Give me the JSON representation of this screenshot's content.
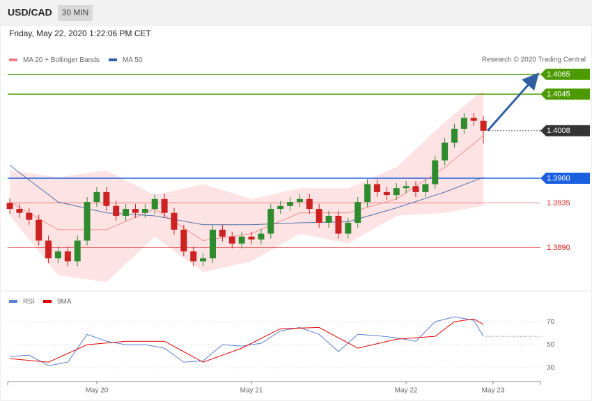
{
  "header": {
    "symbol": "USD/CAD",
    "interval": "30 MIN",
    "timestamp": "Friday, May 22, 2020 1:22:06 PM CET"
  },
  "chart_data": [
    {
      "type": "candlestick",
      "credit": "Research © 2020 Trading Central",
      "xlim": [
        -0.22,
        54.9
      ],
      "ylim": [
        1.3846,
        1.4112
      ],
      "up_color": "#2e8b2e",
      "down_color": "#cc2222",
      "open": [
        1.3935,
        1.3929,
        1.3925,
        1.3918,
        1.3897,
        1.3879,
        1.3886,
        1.3876,
        1.3897,
        1.3936,
        1.3946,
        1.3932,
        1.3922,
        1.3929,
        1.3925,
        1.3929,
        1.3939,
        1.3925,
        1.3908,
        1.3886,
        1.3876,
        1.3879,
        1.3908,
        1.3901,
        1.3894,
        1.3901,
        1.3898,
        1.3904,
        1.3929,
        1.3932,
        1.3936,
        1.3939,
        1.3929,
        1.3915,
        1.3922,
        1.3904,
        1.3915,
        1.3936,
        1.3954,
        1.3946,
        1.3943,
        1.395,
        1.3952,
        1.3946,
        1.3954,
        1.3978,
        1.3996,
        1.401,
        1.4021,
        1.4018
      ],
      "high": [
        1.394,
        1.3934,
        1.393,
        1.3923,
        1.3902,
        1.3891,
        1.3891,
        1.3902,
        1.3941,
        1.3951,
        1.3951,
        1.3937,
        1.3934,
        1.3934,
        1.3934,
        1.3944,
        1.3944,
        1.393,
        1.3913,
        1.3891,
        1.3884,
        1.3913,
        1.3913,
        1.3906,
        1.3906,
        1.3906,
        1.3909,
        1.3934,
        1.3937,
        1.3941,
        1.3944,
        1.3944,
        1.3934,
        1.3927,
        1.3927,
        1.392,
        1.3941,
        1.3959,
        1.3959,
        1.3951,
        1.3955,
        1.3957,
        1.3957,
        1.3959,
        1.3983,
        1.4001,
        1.4015,
        1.4026,
        1.4026,
        1.4023
      ],
      "low": [
        1.3924,
        1.392,
        1.3913,
        1.3892,
        1.3874,
        1.3874,
        1.3871,
        1.3871,
        1.3892,
        1.3931,
        1.3927,
        1.3917,
        1.3917,
        1.392,
        1.392,
        1.3924,
        1.392,
        1.3903,
        1.3881,
        1.3871,
        1.3871,
        1.3874,
        1.3896,
        1.3889,
        1.3889,
        1.3893,
        1.3893,
        1.3899,
        1.3924,
        1.3927,
        1.3931,
        1.3924,
        1.391,
        1.391,
        1.3899,
        1.3899,
        1.391,
        1.3931,
        1.3941,
        1.3938,
        1.3938,
        1.3945,
        1.3941,
        1.3941,
        1.3949,
        1.3973,
        1.3991,
        1.4005,
        1.4013,
        1.3995
      ],
      "close": [
        1.3929,
        1.3925,
        1.3918,
        1.3897,
        1.3879,
        1.3886,
        1.3876,
        1.3897,
        1.3936,
        1.3946,
        1.3932,
        1.3922,
        1.3929,
        1.3925,
        1.3929,
        1.3939,
        1.3925,
        1.3908,
        1.3886,
        1.3876,
        1.3879,
        1.3908,
        1.3901,
        1.3894,
        1.3901,
        1.3898,
        1.3904,
        1.3929,
        1.3932,
        1.3936,
        1.3939,
        1.3929,
        1.3915,
        1.3922,
        1.3904,
        1.3915,
        1.3936,
        1.3954,
        1.3946,
        1.3943,
        1.395,
        1.3952,
        1.3946,
        1.3954,
        1.3978,
        1.3996,
        1.401,
        1.4021,
        1.4018,
        1.4008
      ],
      "overlays": [
        {
          "name": "MA 20 + Bollinger Bands",
          "color": "#f08080",
          "band_color": "#fcd9d9",
          "x": [
            0,
            5,
            10,
            15,
            20,
            25,
            30,
            35,
            40,
            45,
            49
          ],
          "values": [
            1.3936,
            1.3908,
            1.3908,
            1.3929,
            1.3897,
            1.3904,
            1.3925,
            1.3925,
            1.3939,
            1.3971,
            1.4003
          ],
          "upper": [
            1.3968,
            1.3961,
            1.3968,
            1.3943,
            1.3954,
            1.3939,
            1.395,
            1.395,
            1.3971,
            1.4017,
            1.4049
          ],
          "lower": [
            1.3922,
            1.3862,
            1.3855,
            1.3901,
            1.3865,
            1.3876,
            1.3904,
            1.3894,
            1.3922,
            1.3925,
            1.3932
          ]
        },
        {
          "name": "MA 50",
          "color": "#2f5fa0",
          "x": [
            0,
            5,
            10,
            15,
            20,
            25,
            30,
            35,
            40,
            45,
            49
          ],
          "values": [
            1.3973,
            1.3936,
            1.3925,
            1.3922,
            1.3913,
            1.3913,
            1.3915,
            1.3916,
            1.393,
            1.3946,
            1.3961
          ]
        }
      ],
      "levels": [
        {
          "value": 1.4065,
          "label": "1.4065",
          "color": "#4c9a00",
          "boxed": true,
          "line": "solid"
        },
        {
          "value": 1.4045,
          "label": "1.4045",
          "color": "#4c9a00",
          "boxed": true,
          "line": "solid"
        },
        {
          "value": 1.4008,
          "label": "1.4008",
          "color": "#333333",
          "boxed": true,
          "line": "dotted"
        },
        {
          "value": 1.396,
          "label": "1.3960",
          "color": "#1a5fe0",
          "boxed": true,
          "line": "solid"
        },
        {
          "value": 1.3935,
          "label": "1.3935",
          "color": "#e02020",
          "boxed": false,
          "line": "solid"
        },
        {
          "value": 1.389,
          "label": "1.3890",
          "color": "#e02020",
          "boxed": false,
          "line": "solid"
        }
      ]
    },
    {
      "type": "line",
      "xlim": [
        -0.22,
        54.9
      ],
      "ylim": [
        18,
        95.5
      ],
      "yticks": [
        30,
        50,
        70
      ],
      "xticks": [
        {
          "value": 9,
          "label": "May 20"
        },
        {
          "value": 25,
          "label": "May 21"
        },
        {
          "value": 41,
          "label": "May 22"
        },
        {
          "value": 50,
          "label": "May 23"
        }
      ],
      "series": [
        {
          "name": "RSI",
          "color": "#5b7fd6",
          "x": [
            0,
            2,
            4,
            6,
            8,
            10,
            12,
            14,
            16,
            18,
            20,
            22,
            24,
            26,
            28,
            30,
            32,
            34,
            36,
            38,
            40,
            42,
            44,
            46,
            48,
            49
          ],
          "values": [
            39.7,
            40.9,
            31.8,
            34.8,
            59,
            53,
            50,
            50,
            47,
            34.8,
            36,
            50,
            48.8,
            51.2,
            62,
            65,
            59,
            44,
            59,
            57.9,
            56,
            53,
            70,
            74.2,
            71.2,
            57.3
          ]
        },
        {
          "name": "9MA",
          "color": "#e00000",
          "x": [
            0,
            4,
            8,
            12,
            16,
            20,
            24,
            28,
            32,
            36,
            40,
            44,
            46,
            48,
            49
          ],
          "values": [
            37.9,
            34.8,
            50,
            53,
            53,
            34.8,
            47,
            63.9,
            65,
            47,
            54.8,
            57.3,
            70,
            72.4,
            67.6
          ]
        }
      ]
    }
  ]
}
